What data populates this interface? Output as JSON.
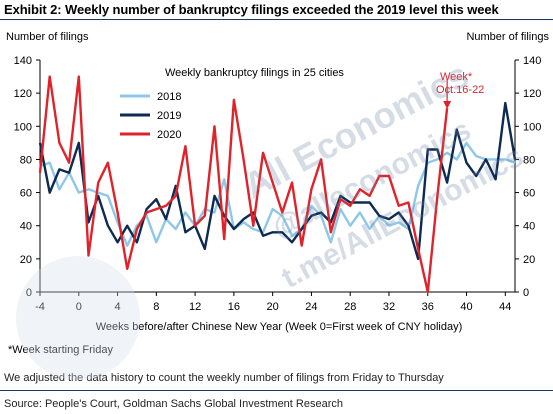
{
  "header": {
    "title": "Exhibit 2: Weekly number of bankruptcy filings exceeded the 2019 level this week"
  },
  "chart_data": {
    "type": "line",
    "title": "Weekly bankruptcy filings in 25 cities",
    "xlabel": "Weeks before/after Chinese New Year (Week 0=First week of CNY holiday)",
    "ylabel_left": "Number of filings",
    "ylabel_right": "Number of filings",
    "xlim": [
      -4,
      45
    ],
    "ylim": [
      0,
      140
    ],
    "x_ticks": [
      -4,
      0,
      4,
      8,
      12,
      16,
      20,
      24,
      28,
      32,
      36,
      40,
      44
    ],
    "y_ticks": [
      0,
      20,
      40,
      60,
      80,
      100,
      120,
      140
    ],
    "legend_position": "top-left",
    "annotation": {
      "text_line1": "Week*",
      "text_line2": "Oct.16-22",
      "x": 38,
      "y": 111
    },
    "series": [
      {
        "name": "2018",
        "color": "#8fc7e8",
        "x": [
          -4,
          -3,
          -2,
          -1,
          0,
          1,
          2,
          3,
          4,
          5,
          6,
          7,
          8,
          9,
          10,
          11,
          12,
          13,
          14,
          15,
          16,
          17,
          18,
          19,
          20,
          21,
          22,
          23,
          24,
          25,
          26,
          27,
          28,
          29,
          30,
          31,
          32,
          33,
          34,
          35,
          36,
          37,
          38,
          39,
          40,
          41,
          42,
          43,
          44,
          45
        ],
        "values": [
          76,
          78,
          62,
          72,
          60,
          62,
          60,
          58,
          42,
          28,
          40,
          46,
          30,
          44,
          38,
          48,
          40,
          50,
          48,
          68,
          38,
          42,
          38,
          36,
          50,
          46,
          34,
          38,
          52,
          46,
          30,
          50,
          40,
          48,
          38,
          46,
          40,
          42,
          38,
          64,
          78,
          80,
          84,
          80,
          90,
          82,
          80,
          80,
          80,
          78
        ]
      },
      {
        "name": "2019",
        "color": "#0d2a52",
        "x": [
          -4,
          -3,
          -2,
          -1,
          0,
          1,
          2,
          3,
          4,
          5,
          6,
          7,
          8,
          9,
          10,
          11,
          12,
          13,
          14,
          15,
          16,
          17,
          18,
          19,
          20,
          21,
          22,
          23,
          24,
          25,
          26,
          27,
          28,
          29,
          30,
          31,
          32,
          33,
          34,
          35,
          36,
          37,
          38,
          39,
          40,
          41,
          42,
          43,
          44,
          45
        ],
        "values": [
          90,
          60,
          74,
          72,
          90,
          42,
          58,
          40,
          30,
          40,
          30,
          50,
          56,
          44,
          64,
          36,
          40,
          26,
          58,
          46,
          38,
          44,
          48,
          34,
          36,
          36,
          30,
          38,
          46,
          48,
          42,
          58,
          54,
          54,
          54,
          46,
          44,
          48,
          40,
          20,
          86,
          86,
          66,
          98,
          78,
          70,
          80,
          68,
          114,
          80
        ]
      },
      {
        "name": "2020",
        "color": "#e0232b",
        "x": [
          -4,
          -3,
          -2,
          -1,
          0,
          1,
          2,
          3,
          4,
          5,
          6,
          7,
          8,
          9,
          10,
          11,
          12,
          13,
          14,
          15,
          16,
          17,
          18,
          19,
          20,
          21,
          22,
          23,
          24,
          25,
          26,
          27,
          28,
          29,
          30,
          31,
          32,
          33,
          34,
          35,
          36,
          37,
          38
        ],
        "values": [
          72,
          130,
          90,
          78,
          130,
          22,
          66,
          78,
          48,
          14,
          38,
          48,
          50,
          52,
          58,
          88,
          40,
          46,
          100,
          32,
          116,
          80,
          40,
          84,
          66,
          48,
          66,
          28,
          62,
          80,
          36,
          56,
          52,
          62,
          58,
          70,
          70,
          52,
          54,
          26,
          0,
          58,
          111
        ]
      }
    ]
  },
  "footnotes": {
    "week_note": "*Week starting Friday",
    "adjust_note": "We adjusted the data history to count the weekly number of filings from Friday to Thursday",
    "source": "Source: People's Court, Goldman Sachs Global Investment Research"
  },
  "watermark": {
    "text_1": "All Economics",
    "text_2": "@alleconomics",
    "text_3": "t.me/AllEconomics"
  }
}
